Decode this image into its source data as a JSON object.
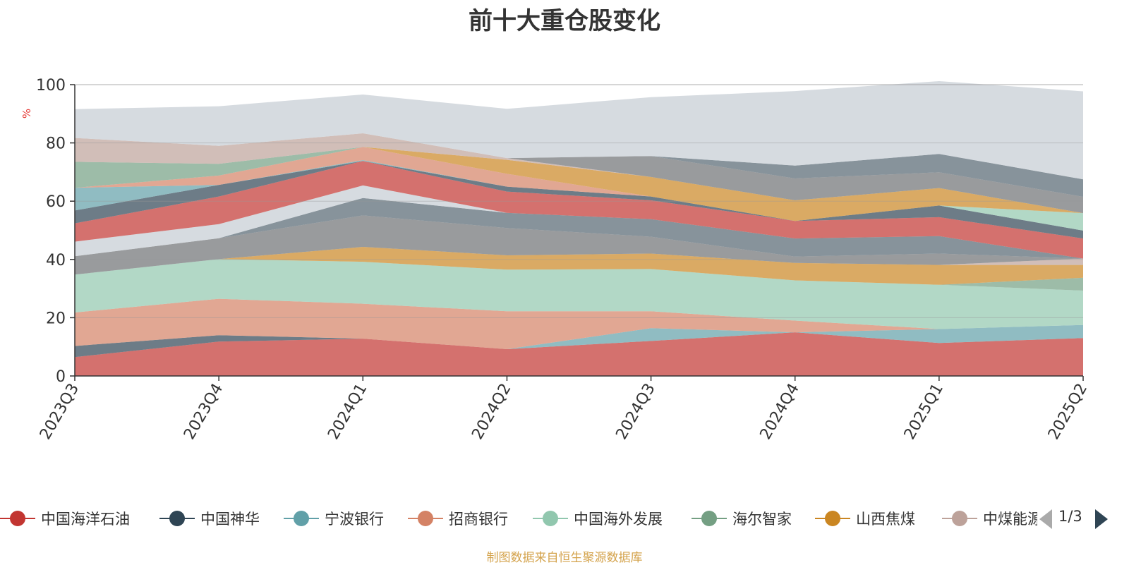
{
  "chart_data": {
    "type": "area",
    "title": "前十大重仓股变化",
    "ylabel": "%",
    "ylim": [
      0,
      100
    ],
    "yticks": [
      0,
      20,
      40,
      60,
      80,
      100
    ],
    "grid": true,
    "stacked": true,
    "legend_position": "bottom",
    "categories": [
      "2023Q3",
      "2023Q4",
      "2024Q1",
      "2024Q2",
      "2024Q3",
      "2024Q4",
      "2025Q1",
      "2025Q2"
    ],
    "series": [
      {
        "name": "中国海洋石油",
        "color": "#c23531",
        "values": [
          6.5,
          11.8,
          12.8,
          9.2,
          12.0,
          15.0,
          11.3,
          13.0
        ]
      },
      {
        "name": "中国神华",
        "color": "#2f4554",
        "values": [
          3.8,
          2.2,
          0.0,
          0.0,
          0.0,
          0.0,
          0.0,
          0.0
        ]
      },
      {
        "name": "宁波银行",
        "color": "#61a0a8",
        "values": [
          0.0,
          0.0,
          0.0,
          0.0,
          4.4,
          0.0,
          4.8,
          4.5
        ]
      },
      {
        "name": "招商银行",
        "color": "#d48265",
        "values": [
          11.5,
          12.5,
          12.0,
          13.0,
          5.8,
          4.0,
          0.0,
          0.0
        ]
      },
      {
        "name": "中国海外发展",
        "color": "#91c7ae",
        "values": [
          13.0,
          13.6,
          14.4,
          14.3,
          14.5,
          13.8,
          15.2,
          11.8
        ]
      },
      {
        "name": "海尔智家",
        "color": "#749f83",
        "values": [
          0.0,
          0.0,
          0.0,
          0.0,
          0.0,
          0.0,
          0.0,
          4.4
        ]
      },
      {
        "name": "山西焦煤",
        "color": "#ca8622",
        "values": [
          0.0,
          0.0,
          5.1,
          4.9,
          5.3,
          6.0,
          6.8,
          4.4
        ]
      },
      {
        "name": "中煤能源",
        "color": "#bda29a",
        "values": [
          0.0,
          0.0,
          0.0,
          0.0,
          0.0,
          0.0,
          0.0,
          2.2
        ]
      },
      {
        "name": "",
        "color": "#6e7074",
        "values": [
          6.3,
          7.2,
          10.8,
          9.4,
          5.8,
          2.2,
          3.9,
          0.0
        ]
      },
      {
        "name": "",
        "color": "#546570",
        "values": [
          0.0,
          0.0,
          6.0,
          5.2,
          6.0,
          6.2,
          6.0,
          0.0
        ]
      },
      {
        "name": "",
        "color": "#c4ccd3",
        "values": [
          5.0,
          4.8,
          4.3,
          0.0,
          0.0,
          0.0,
          0.0,
          0.0
        ]
      },
      {
        "name": "",
        "color": "#c23531",
        "values": [
          6.3,
          9.5,
          8.4,
          7.3,
          6.5,
          6.0,
          6.5,
          6.9
        ]
      },
      {
        "name": "",
        "color": "#2f4554",
        "values": [
          4.4,
          4.0,
          0.0,
          1.7,
          1.3,
          0.0,
          4.0,
          2.7
        ]
      },
      {
        "name": "",
        "color": "#61a0a8",
        "values": [
          7.8,
          0.0,
          0.3,
          0.0,
          0.0,
          0.0,
          0.0,
          0.0
        ]
      },
      {
        "name": "",
        "color": "#d48265",
        "values": [
          0.0,
          3.2,
          4.5,
          4.4,
          0.0,
          0.0,
          0.0,
          0.0
        ]
      },
      {
        "name": "",
        "color": "#91c7ae",
        "values": [
          0.0,
          0.0,
          0.0,
          0.0,
          0.0,
          0.0,
          0.0,
          6.0
        ]
      },
      {
        "name": "",
        "color": "#749f83",
        "values": [
          8.9,
          4.0,
          0.0,
          0.0,
          0.0,
          0.0,
          0.0,
          0.0
        ]
      },
      {
        "name": "",
        "color": "#ca8622",
        "values": [
          0.0,
          0.0,
          0.0,
          4.8,
          6.7,
          7.1,
          6.0,
          0.0
        ]
      },
      {
        "name": "",
        "color": "#bda29a",
        "values": [
          8.2,
          6.2,
          4.7,
          0.6,
          0.0,
          0.0,
          0.0,
          0.0
        ]
      },
      {
        "name": "",
        "color": "#6e7074",
        "values": [
          0.0,
          0.0,
          0.0,
          0.0,
          7.2,
          7.5,
          5.4,
          5.6
        ]
      },
      {
        "name": "",
        "color": "#546570",
        "values": [
          0.0,
          0.0,
          0.0,
          0.0,
          0.0,
          4.4,
          6.3,
          6.0
        ]
      },
      {
        "name": "",
        "color": "#c4ccd3",
        "values": [
          9.9,
          13.6,
          13.3,
          16.9,
          20.2,
          25.6,
          25.0,
          30.2
        ]
      }
    ]
  },
  "legend": {
    "items": [
      {
        "label": "中国海洋石油",
        "color": "#c23531"
      },
      {
        "label": "中国神华",
        "color": "#2f4554"
      },
      {
        "label": "宁波银行",
        "color": "#61a0a8"
      },
      {
        "label": "招商银行",
        "color": "#d48265"
      },
      {
        "label": "中国海外发展",
        "color": "#91c7ae"
      },
      {
        "label": "海尔智家",
        "color": "#749f83"
      },
      {
        "label": "山西焦煤",
        "color": "#ca8622"
      },
      {
        "label": "中煤能源",
        "color": "#bda29a"
      }
    ],
    "page_indicator": "1/3",
    "prev_icon": "triangle-left-icon",
    "next_icon": "triangle-right-icon"
  },
  "source_note": "制图数据来自恒生聚源数据库"
}
